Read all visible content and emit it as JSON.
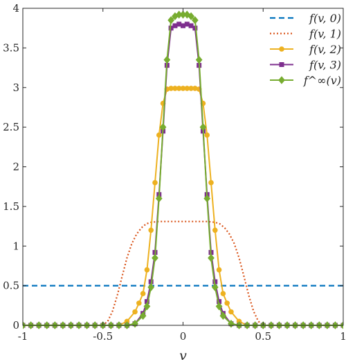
{
  "chart_data": {
    "type": "line",
    "xlabel": "v",
    "ylabel": "",
    "xlim": [
      -1,
      1
    ],
    "ylim": [
      0,
      4
    ],
    "x_ticks": [
      "-1",
      "-0.5",
      "0",
      "0.5",
      "1"
    ],
    "y_ticks": [
      "0",
      "0.5",
      "1",
      "1.5",
      "2",
      "2.5",
      "3",
      "3.5",
      "4"
    ],
    "legend_position": "top-right",
    "grid": false,
    "series": [
      {
        "name": "f(v, 0)",
        "color": "#0072BD",
        "style": "dashed",
        "marker": "none",
        "x": [
          -1,
          1
        ],
        "y": [
          0.5,
          0.5
        ]
      },
      {
        "name": "f(v, 1)",
        "color": "#D95319",
        "style": "dotted",
        "marker": "none",
        "x": [
          -1,
          -0.5,
          -0.47,
          -0.44,
          -0.41,
          -0.38,
          -0.35,
          -0.32,
          -0.29,
          -0.26,
          -0.23,
          -0.2,
          -0.15,
          -0.1,
          0,
          0.1,
          0.15,
          0.2,
          0.23,
          0.26,
          0.29,
          0.32,
          0.35,
          0.38,
          0.41,
          0.44,
          0.47,
          0.5,
          1
        ],
        "y": [
          0,
          0,
          0.05,
          0.18,
          0.38,
          0.62,
          0.85,
          1.03,
          1.15,
          1.23,
          1.28,
          1.3,
          1.31,
          1.31,
          1.31,
          1.31,
          1.31,
          1.3,
          1.28,
          1.23,
          1.15,
          1.03,
          0.85,
          0.62,
          0.38,
          0.18,
          0.05,
          0,
          0
        ]
      },
      {
        "name": "f(v, 2)",
        "color": "#EDB120",
        "style": "solid",
        "marker": "circle",
        "x": [
          -1,
          -0.95,
          -0.9,
          -0.85,
          -0.8,
          -0.75,
          -0.7,
          -0.65,
          -0.6,
          -0.55,
          -0.5,
          -0.45,
          -0.4,
          -0.35,
          -0.3,
          -0.275,
          -0.25,
          -0.225,
          -0.2,
          -0.175,
          -0.15,
          -0.125,
          -0.1,
          -0.075,
          -0.05,
          -0.025,
          0,
          0.025,
          0.05,
          0.075,
          0.1,
          0.125,
          0.15,
          0.175,
          0.2,
          0.225,
          0.25,
          0.275,
          0.3,
          0.35,
          0.4,
          0.45,
          0.5,
          0.55,
          0.6,
          0.65,
          0.7,
          0.75,
          0.8,
          0.85,
          0.9,
          0.95,
          1
        ],
        "y": [
          0,
          0,
          0,
          0,
          0,
          0,
          0,
          0,
          0,
          0,
          0,
          0,
          0,
          0.05,
          0.17,
          0.28,
          0.4,
          0.7,
          1.2,
          1.8,
          2.4,
          2.8,
          2.98,
          2.99,
          2.99,
          2.99,
          2.99,
          2.99,
          2.99,
          2.99,
          2.98,
          2.8,
          2.4,
          1.8,
          1.2,
          0.7,
          0.4,
          0.28,
          0.17,
          0.05,
          0,
          0,
          0,
          0,
          0,
          0,
          0,
          0,
          0,
          0,
          0,
          0,
          0
        ]
      },
      {
        "name": "f(v, 3)",
        "color": "#7E2F8E",
        "style": "solid",
        "marker": "square",
        "x": [
          -1,
          -0.95,
          -0.9,
          -0.85,
          -0.8,
          -0.75,
          -0.7,
          -0.65,
          -0.6,
          -0.55,
          -0.5,
          -0.45,
          -0.4,
          -0.35,
          -0.3,
          -0.25,
          -0.225,
          -0.2,
          -0.175,
          -0.15,
          -0.125,
          -0.1,
          -0.075,
          -0.05,
          -0.025,
          0,
          0.025,
          0.05,
          0.075,
          0.1,
          0.125,
          0.15,
          0.175,
          0.2,
          0.225,
          0.25,
          0.3,
          0.35,
          0.4,
          0.45,
          0.5,
          0.55,
          0.6,
          0.65,
          0.7,
          0.75,
          0.8,
          0.85,
          0.9,
          0.95,
          1
        ],
        "y": [
          0,
          0,
          0,
          0,
          0,
          0,
          0,
          0,
          0,
          0,
          0,
          0,
          0,
          0,
          0.02,
          0.15,
          0.3,
          0.55,
          0.92,
          1.65,
          2.45,
          3.28,
          3.75,
          3.78,
          3.8,
          3.78,
          3.8,
          3.78,
          3.75,
          3.28,
          2.45,
          1.65,
          0.92,
          0.55,
          0.3,
          0.15,
          0.02,
          0,
          0,
          0,
          0,
          0,
          0,
          0,
          0,
          0,
          0,
          0,
          0,
          0,
          0
        ]
      },
      {
        "name": "f^∞(v)",
        "color": "#77AC30",
        "style": "solid",
        "marker": "diamond",
        "x": [
          -1,
          -0.95,
          -0.9,
          -0.85,
          -0.8,
          -0.75,
          -0.7,
          -0.65,
          -0.6,
          -0.55,
          -0.5,
          -0.45,
          -0.4,
          -0.35,
          -0.3,
          -0.25,
          -0.225,
          -0.2,
          -0.175,
          -0.15,
          -0.125,
          -0.1,
          -0.075,
          -0.05,
          -0.025,
          0,
          0.025,
          0.05,
          0.075,
          0.1,
          0.125,
          0.15,
          0.175,
          0.2,
          0.225,
          0.25,
          0.3,
          0.35,
          0.4,
          0.45,
          0.5,
          0.55,
          0.6,
          0.65,
          0.7,
          0.75,
          0.8,
          0.85,
          0.9,
          0.95,
          1
        ],
        "y": [
          0,
          0,
          0,
          0,
          0,
          0,
          0,
          0,
          0,
          0,
          0,
          0,
          0,
          0,
          0.02,
          0.12,
          0.24,
          0.48,
          0.85,
          1.6,
          2.5,
          3.35,
          3.85,
          3.9,
          3.92,
          3.92,
          3.92,
          3.9,
          3.85,
          3.35,
          2.5,
          1.6,
          0.85,
          0.48,
          0.24,
          0.12,
          0.02,
          0,
          0,
          0,
          0,
          0,
          0,
          0,
          0,
          0,
          0,
          0,
          0,
          0,
          0
        ]
      }
    ]
  }
}
